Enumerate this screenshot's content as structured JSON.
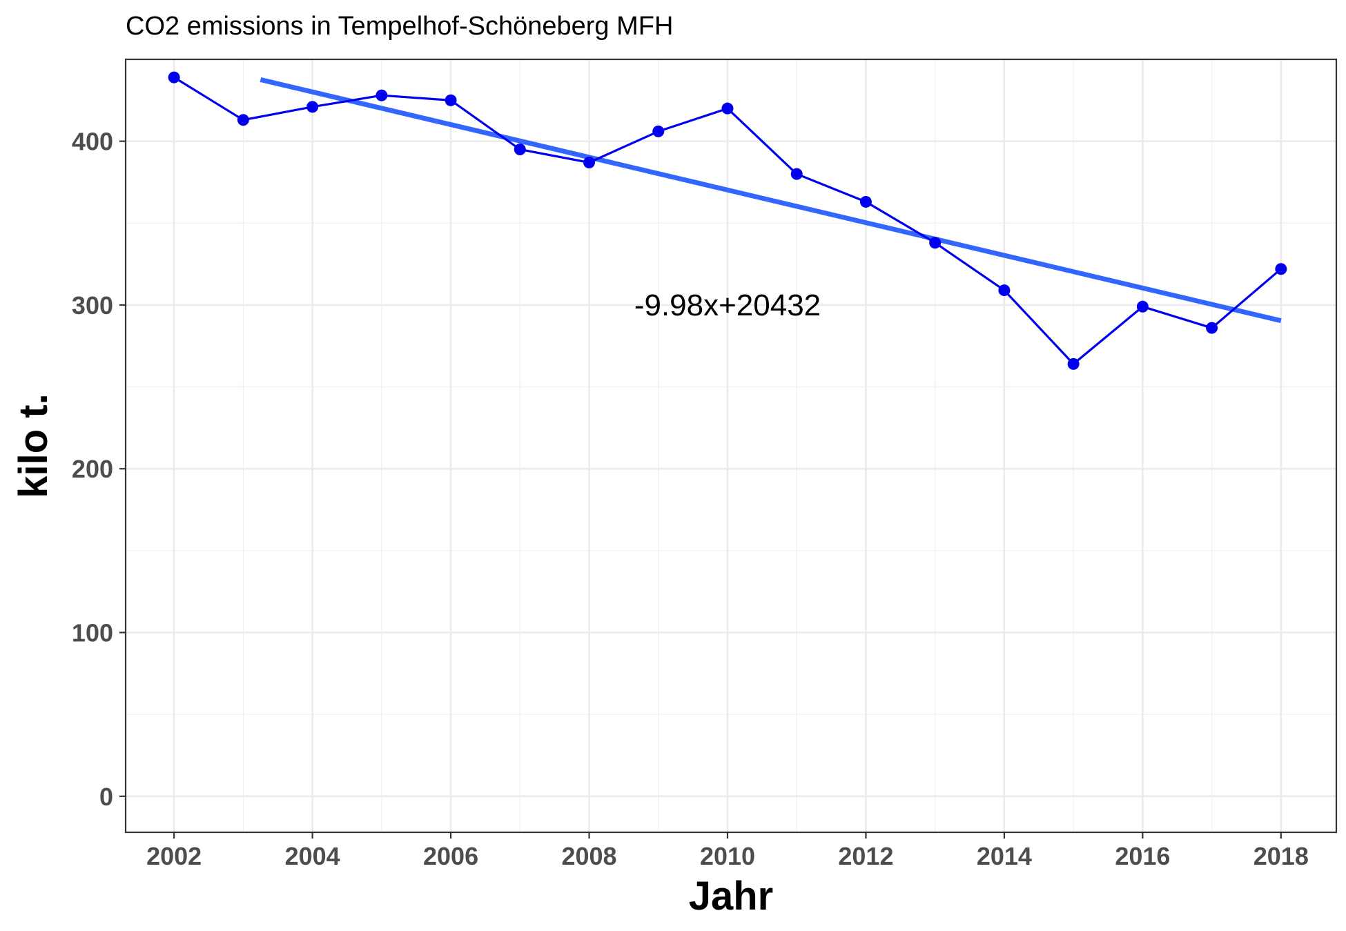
{
  "chart_data": {
    "type": "line",
    "title": "CO2 emissions in Tempelhof-Schöneberg MFH",
    "xlabel": "Jahr",
    "ylabel": "kilo t.",
    "xlim": [
      2001.3,
      2018.8
    ],
    "ylim": [
      -22,
      450
    ],
    "x_ticks": [
      2002,
      2004,
      2006,
      2008,
      2010,
      2012,
      2014,
      2016,
      2018
    ],
    "x_tick_labels": [
      "2002",
      "2004",
      "2006",
      "2008",
      "2010",
      "2012",
      "2014",
      "2016",
      "2018"
    ],
    "y_ticks": [
      0,
      100,
      200,
      300,
      400
    ],
    "y_tick_labels": [
      "0",
      "100",
      "200",
      "300",
      "400"
    ],
    "grid": true,
    "series": [
      {
        "color": "#0000ee",
        "x": [
          2002,
          2003,
          2004,
          2005,
          2006,
          2007,
          2008,
          2009,
          2010,
          2011,
          2012,
          2013,
          2014,
          2015,
          2016,
          2017,
          2018
        ],
        "values": [
          439,
          413,
          421,
          428,
          425,
          395,
          387,
          406,
          420,
          380,
          363,
          338,
          309,
          264,
          299,
          286,
          322
        ]
      }
    ],
    "trendline": {
      "color": "#3366ff",
      "x": [
        2003.25,
        2018
      ],
      "values": [
        437.6,
        290.4
      ]
    },
    "annotation": {
      "text": "-9.98x+20432",
      "x": 2010,
      "y": 300
    }
  }
}
